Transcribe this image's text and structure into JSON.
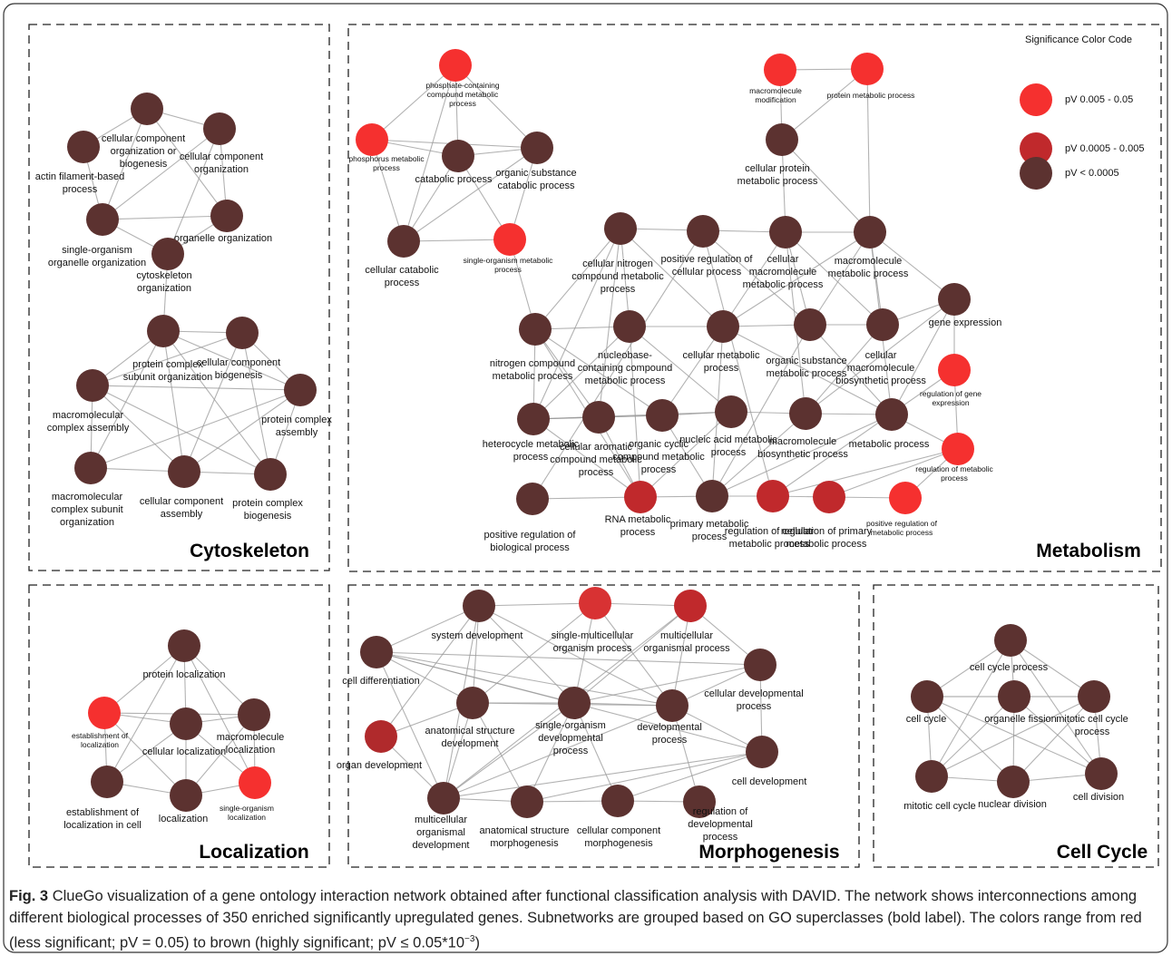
{
  "panels": [
    {
      "title": "Cytoskeleton",
      "nodes": [
        {
          "label": "cellular component organization or biogenesis",
          "color": "#5c3230"
        },
        {
          "label": "cellular component organization",
          "color": "#5c3230"
        },
        {
          "label": "actin filament-based process",
          "color": "#5c3230"
        },
        {
          "label": "single-organism organelle organization",
          "color": "#5c3230"
        },
        {
          "label": "organelle organization",
          "color": "#5c3230"
        },
        {
          "label": "cytoskeleton organization",
          "color": "#5c3230"
        },
        {
          "label": "protein complex subunit organization",
          "color": "#5c3230"
        },
        {
          "label": "cellular component biogenesis",
          "color": "#5c3230"
        },
        {
          "label": "protein complex assembly",
          "color": "#5c3230"
        },
        {
          "label": "macromolecular complex assembly",
          "color": "#5c3230"
        },
        {
          "label": "macromolecular complex subunit organization",
          "color": "#5c3230"
        },
        {
          "label": "cellular component assembly",
          "color": "#5c3230"
        },
        {
          "label": "protein complex biogenesis",
          "color": "#5c3230"
        }
      ]
    },
    {
      "title": "Metabolism",
      "nodes": [
        {
          "label": "phosphate-containing compound metabolic process",
          "color": "#f5302f"
        },
        {
          "label": "phosphorus metabolic process",
          "color": "#f5302f"
        },
        {
          "label": "catabolic process",
          "color": "#5c3230"
        },
        {
          "label": "organic substance catabolic process",
          "color": "#5c3230"
        },
        {
          "label": "cellular catabolic process",
          "color": "#5c3230"
        },
        {
          "label": "single-organism metabolic process",
          "color": "#f5302f"
        },
        {
          "label": "macromolecule modification",
          "color": "#f5302f"
        },
        {
          "label": "protein metabolic process",
          "color": "#f5302f"
        },
        {
          "label": "cellular protein metabolic process",
          "color": "#5c3230"
        },
        {
          "label": "cellular nitrogen compound metabolic process",
          "color": "#5c3230"
        },
        {
          "label": "positive regulation of cellular process",
          "color": "#5c3230"
        },
        {
          "label": "cellular macromolecule metabolic process",
          "color": "#5c3230"
        },
        {
          "label": "macromolecule metabolic process",
          "color": "#5c3230"
        },
        {
          "label": "gene expression",
          "color": "#5c3230"
        },
        {
          "label": "nitrogen compound metabolic process",
          "color": "#5c3230"
        },
        {
          "label": "nucleobase-containing compound metabolic process",
          "color": "#5c3230"
        },
        {
          "label": "cellular metabolic process",
          "color": "#5c3230"
        },
        {
          "label": "organic substance metabolic process",
          "color": "#5c3230"
        },
        {
          "label": "cellular macromolecule biosynthetic process",
          "color": "#5c3230"
        },
        {
          "label": "regulation of gene expression",
          "color": "#f5302f"
        },
        {
          "label": "heterocycle metabolic process",
          "color": "#5c3230"
        },
        {
          "label": "cellular aromatic compound metabolic process",
          "color": "#5c3230"
        },
        {
          "label": "organic cyclic compound metabolic process",
          "color": "#5c3230"
        },
        {
          "label": "nucleic acid metabolic process",
          "color": "#5c3230"
        },
        {
          "label": "macromolecule biosynthetic process",
          "color": "#5c3230"
        },
        {
          "label": "metabolic process",
          "color": "#5c3230"
        },
        {
          "label": "regulation of metabolic process",
          "color": "#f5302f"
        },
        {
          "label": "positive regulation of biological process",
          "color": "#5c3230"
        },
        {
          "label": "RNA metabolic process",
          "color": "#c0292c"
        },
        {
          "label": "primary metabolic process",
          "color": "#5c3230"
        },
        {
          "label": "regulation of cellular metabolic process",
          "color": "#c0292c"
        },
        {
          "label": "regulation of primary metabolic process",
          "color": "#c0292c"
        },
        {
          "label": "positive regulation of metabolic process",
          "color": "#f5302f"
        }
      ]
    },
    {
      "title": "Localization",
      "nodes": [
        {
          "label": "protein localization",
          "color": "#5c3230"
        },
        {
          "label": "establishment of localization",
          "color": "#f5302f"
        },
        {
          "label": "cellular localization",
          "color": "#5c3230"
        },
        {
          "label": "macromolecule localization",
          "color": "#5c3230"
        },
        {
          "label": "establishment of localization in cell",
          "color": "#5c3230"
        },
        {
          "label": "localization",
          "color": "#5c3230"
        },
        {
          "label": "single-organism localization",
          "color": "#f5302f"
        }
      ]
    },
    {
      "title": "Morphogenesis",
      "nodes": [
        {
          "label": "system development",
          "color": "#5c3230"
        },
        {
          "label": "single-multicellular organism process",
          "color": "#d83233"
        },
        {
          "label": "multicellular organismal process",
          "color": "#c0292c"
        },
        {
          "label": "cell differentiation",
          "color": "#5c3230"
        },
        {
          "label": "cellular developmental process",
          "color": "#5c3230"
        },
        {
          "label": "anatomical structure development",
          "color": "#5c3230"
        },
        {
          "label": "single-organism developmental process",
          "color": "#5c3230"
        },
        {
          "label": "developmental process",
          "color": "#5c3230"
        },
        {
          "label": "organ development",
          "color": "#b02a2c"
        },
        {
          "label": "cell development",
          "color": "#5c3230"
        },
        {
          "label": "multicellular organismal development",
          "color": "#5c3230"
        },
        {
          "label": "anatomical structure morphogenesis",
          "color": "#5c3230"
        },
        {
          "label": "cellular component morphogenesis",
          "color": "#5c3230"
        },
        {
          "label": "regulation of developmental process",
          "color": "#5c3230"
        }
      ]
    },
    {
      "title": "Cell Cycle",
      "nodes": [
        {
          "label": "cell cycle process",
          "color": "#5c3230"
        },
        {
          "label": "cell cycle",
          "color": "#5c3230"
        },
        {
          "label": "organelle fission",
          "color": "#5c3230"
        },
        {
          "label": "mitotic cell cycle process",
          "color": "#5c3230"
        },
        {
          "label": "mitotic cell cycle",
          "color": "#5c3230"
        },
        {
          "label": "nuclear division",
          "color": "#5c3230"
        },
        {
          "label": "cell division",
          "color": "#5c3230"
        }
      ]
    }
  ],
  "legend": {
    "title": "Significance Color Code",
    "entries": [
      {
        "label": "pV  0.005 - 0.05",
        "color": "#f5302f"
      },
      {
        "label": "pV  0.0005 - 0.005",
        "color": "#c0292c"
      },
      {
        "label": "pV  < 0.0005",
        "color": "#5c3230"
      }
    ]
  },
  "caption": {
    "label": "Fig. 3",
    "text": "ClueGo visualization of a gene ontology interaction network obtained after functional classification analysis with DAVID. The network shows interconnections among different biological processes of 350 enriched significantly upregulated genes. Subnetworks are grouped based on GO superclasses (bold label). The colors range from red (less significant; pV = 0.05) to brown (highly significant; pV ≤ 0.05*10",
    "superscript": "−3",
    "end": ")"
  }
}
